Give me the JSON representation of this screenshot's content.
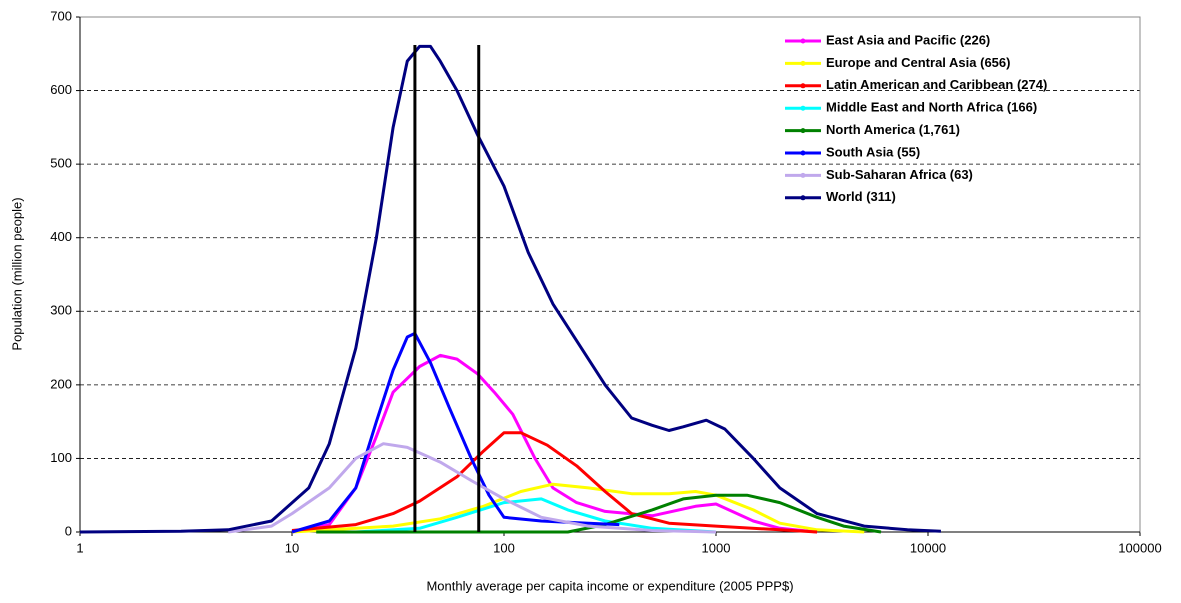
{
  "chart_data": {
    "type": "line",
    "xlabel": "Monthly average per capita income or expenditure (2005 PPP$)",
    "ylabel": "Population (million people)",
    "xscale": "log",
    "xlim": [
      1,
      100000
    ],
    "xticks": [
      1,
      10,
      100,
      1000,
      10000,
      100000
    ],
    "ylim": [
      0,
      700
    ],
    "yticks": [
      0,
      100,
      200,
      300,
      400,
      500,
      600,
      700
    ],
    "grid": true,
    "legend": "upper right",
    "vlines": [
      {
        "x": 38,
        "ylim": [
          0,
          662
        ],
        "color": "#000000"
      },
      {
        "x": 76,
        "ylim": [
          0,
          662
        ],
        "color": "#000000"
      }
    ],
    "series": [
      {
        "name": "East Asia and Pacific (226)",
        "color": "#ff00ff",
        "x": [
          10,
          15,
          20,
          25,
          30,
          40,
          50,
          60,
          75,
          90,
          110,
          140,
          170,
          220,
          300,
          500,
          800,
          1000,
          1500,
          2000,
          3000
        ],
        "values": [
          0,
          10,
          60,
          130,
          190,
          225,
          240,
          235,
          215,
          190,
          160,
          100,
          60,
          40,
          28,
          22,
          35,
          38,
          15,
          5,
          0
        ]
      },
      {
        "name": "Europe and Central Asia (656)",
        "color": "#ffff00",
        "x": [
          10,
          30,
          50,
          80,
          120,
          170,
          250,
          400,
          600,
          800,
          1000,
          1500,
          2000,
          3000,
          5000
        ],
        "values": [
          0,
          8,
          18,
          35,
          55,
          65,
          60,
          52,
          52,
          55,
          50,
          30,
          12,
          3,
          0
        ]
      },
      {
        "name": "Latin American and Caribbean (274)",
        "color": "#ff0000",
        "x": [
          10,
          20,
          30,
          40,
          60,
          80,
          100,
          120,
          160,
          220,
          300,
          400,
          600,
          1000,
          2000,
          3000
        ],
        "values": [
          2,
          10,
          25,
          42,
          75,
          110,
          135,
          135,
          118,
          90,
          55,
          25,
          12,
          8,
          3,
          0
        ]
      },
      {
        "name": "Middle East and North Africa (166)",
        "color": "#00ffff",
        "x": [
          20,
          40,
          60,
          100,
          150,
          200,
          300,
          500,
          1000
        ],
        "values": [
          0,
          5,
          20,
          40,
          45,
          30,
          15,
          5,
          0
        ]
      },
      {
        "name": "North America (1,761)",
        "color": "#008000",
        "x": [
          13,
          200,
          300,
          500,
          700,
          1000,
          1400,
          2000,
          3000,
          4000,
          6000
        ],
        "values": [
          0,
          0,
          10,
          30,
          45,
          50,
          50,
          40,
          20,
          8,
          0
        ]
      },
      {
        "name": "South Asia (55)",
        "color": "#0000ff",
        "x": [
          10,
          15,
          20,
          25,
          30,
          35,
          38,
          45,
          55,
          70,
          85,
          100,
          150,
          250,
          350
        ],
        "values": [
          0,
          15,
          60,
          150,
          220,
          265,
          270,
          230,
          170,
          100,
          50,
          20,
          15,
          12,
          10
        ]
      },
      {
        "name": "Sub-Saharan Africa (63)",
        "color": "#c0a8ec",
        "x": [
          5,
          8,
          10,
          15,
          20,
          27,
          35,
          50,
          70,
          100,
          150,
          250,
          500,
          1000
        ],
        "values": [
          0,
          8,
          25,
          60,
          100,
          120,
          115,
          95,
          70,
          45,
          20,
          8,
          2,
          0
        ]
      },
      {
        "name": "World (311)",
        "color": "#000080",
        "x": [
          1,
          3,
          5,
          8,
          12,
          15,
          20,
          25,
          30,
          35,
          40,
          45,
          50,
          60,
          75,
          100,
          130,
          170,
          220,
          300,
          400,
          500,
          600,
          700,
          900,
          1100,
          1500,
          2000,
          3000,
          5000,
          8000,
          11500
        ],
        "values": [
          0,
          1,
          3,
          15,
          60,
          120,
          250,
          400,
          550,
          640,
          660,
          660,
          640,
          600,
          540,
          470,
          380,
          310,
          260,
          200,
          155,
          145,
          138,
          143,
          152,
          140,
          100,
          60,
          25,
          8,
          3,
          1
        ]
      }
    ]
  }
}
